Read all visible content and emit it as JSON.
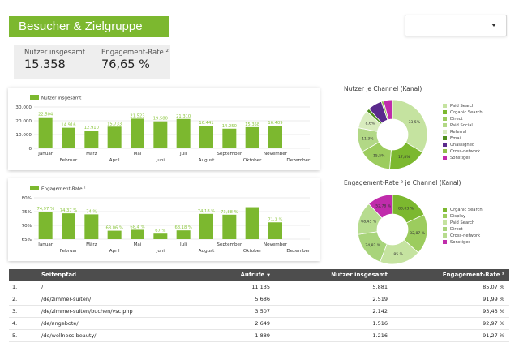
{
  "page": {
    "title": "Besucher & Zielgruppe",
    "dropdown_value": ""
  },
  "kpis": [
    {
      "label": "Nutzer insgesamt",
      "value": "15.358"
    },
    {
      "label": "Engagement-Rate ²",
      "value": "76,65 %"
    }
  ],
  "colors": {
    "accent": "#7cb82f",
    "bar": "#7cb82f",
    "bar_label": "#8cc63f",
    "header_bg": "#4d4d4d"
  },
  "chart_data": [
    {
      "type": "bar",
      "legend": "Nutzer insgesamt",
      "categories": [
        "Januar",
        "Februar",
        "März",
        "April",
        "Mai",
        "Juni",
        "Juli",
        "August",
        "September",
        "Oktober",
        "November",
        "Dezember"
      ],
      "values": [
        22504,
        14916,
        12910,
        15733,
        21523,
        19580,
        21310,
        16441,
        14250,
        15358,
        16409,
        null
      ],
      "value_labels": [
        "22.504",
        "14.916",
        "12.910",
        "15.733",
        "21.523",
        "19.580",
        "21.310",
        "16.441",
        "14.250",
        "15.358",
        "16.409",
        ""
      ],
      "y_ticks": [
        "30.000",
        "20.000",
        "10.000",
        "0"
      ],
      "ylim": [
        0,
        30000
      ],
      "grid": true
    },
    {
      "type": "bar",
      "legend": "Engagement-Rate ²",
      "categories": [
        "Januar",
        "Februar",
        "März",
        "April",
        "Mai",
        "Juni",
        "Juli",
        "August",
        "September",
        "Oktober",
        "November",
        "Dezember"
      ],
      "values": [
        74.97,
        74.37,
        74.0,
        68.06,
        68.4,
        67.0,
        68.18,
        74.18,
        73.88,
        76.6,
        71.1,
        null
      ],
      "value_labels": [
        "74,97 %",
        "74,37 %",
        "74 %",
        "68,06 %",
        "68,4 %",
        "67 %",
        "68,18 %",
        "74,18 %",
        "73,88 %",
        "",
        "71,1 %",
        ""
      ],
      "y_ticks": [
        "80%",
        "75%",
        "70%",
        "65%"
      ],
      "ylim": [
        65,
        80
      ],
      "grid": true
    },
    {
      "type": "pie",
      "title": "Nutzer je Channel (Kanal)",
      "labels": [
        "Paid Search",
        "Organic Search",
        "Direct",
        "Paid Social",
        "Referral",
        "Email",
        "Unassigned",
        "Cross-network",
        "Sonstiges"
      ],
      "values": [
        33.5,
        17.8,
        15.5,
        11.3,
        8.6,
        1.5,
        6.6,
        1.0,
        4.2
      ],
      "value_labels": [
        "33,5%",
        "17,8%",
        "15,5%",
        "11,3%",
        "8,6%",
        "",
        "",
        "",
        ""
      ],
      "colors": [
        "#c5e3a0",
        "#7cb82f",
        "#9ccc5e",
        "#b2d886",
        "#d8ecbe",
        "#4e8f1c",
        "#5a2a8c",
        "#8fbf4a",
        "#c02cab"
      ]
    },
    {
      "type": "pie",
      "title": "Engagement-Rate ² je Channel (Kanal)",
      "labels": [
        "Organic Search",
        "Display",
        "Paid Search",
        "Direct",
        "Cross-network",
        "Sonstiges"
      ],
      "values": [
        80.03,
        82.87,
        85.0,
        74.82,
        68.45,
        52.78
      ],
      "value_labels": [
        "80,03 %",
        "82,87 %",
        "85 %",
        "74,82 %",
        "68,45 %",
        "52,78 %"
      ],
      "colors": [
        "#7cb82f",
        "#9ccc5e",
        "#c5e3a0",
        "#a8d47a",
        "#b7dc8f",
        "#c02cab"
      ]
    }
  ],
  "table": {
    "headers": {
      "path": "Seitenpfad",
      "views": "Aufrufe",
      "users": "Nutzer insgesamt",
      "rate": "Engagement-Rate ²"
    },
    "sort_arrow": "▼",
    "rows": [
      {
        "idx": "1.",
        "path": "/",
        "views": "11.135",
        "users": "5.881",
        "rate": "85,07 %"
      },
      {
        "idx": "2.",
        "path": "/de/zimmer-suiten/",
        "views": "5.686",
        "users": "2.519",
        "rate": "91,99 %"
      },
      {
        "idx": "3.",
        "path": "/de/zimmer-suiten/buchen/vsc.php",
        "views": "3.507",
        "users": "2.142",
        "rate": "93,43 %"
      },
      {
        "idx": "4.",
        "path": "/de/angebote/",
        "views": "2.649",
        "users": "1.516",
        "rate": "92,97 %"
      },
      {
        "idx": "5.",
        "path": "/de/wellness-beauty/",
        "views": "1.889",
        "users": "1.216",
        "rate": "91,27 %"
      }
    ]
  }
}
